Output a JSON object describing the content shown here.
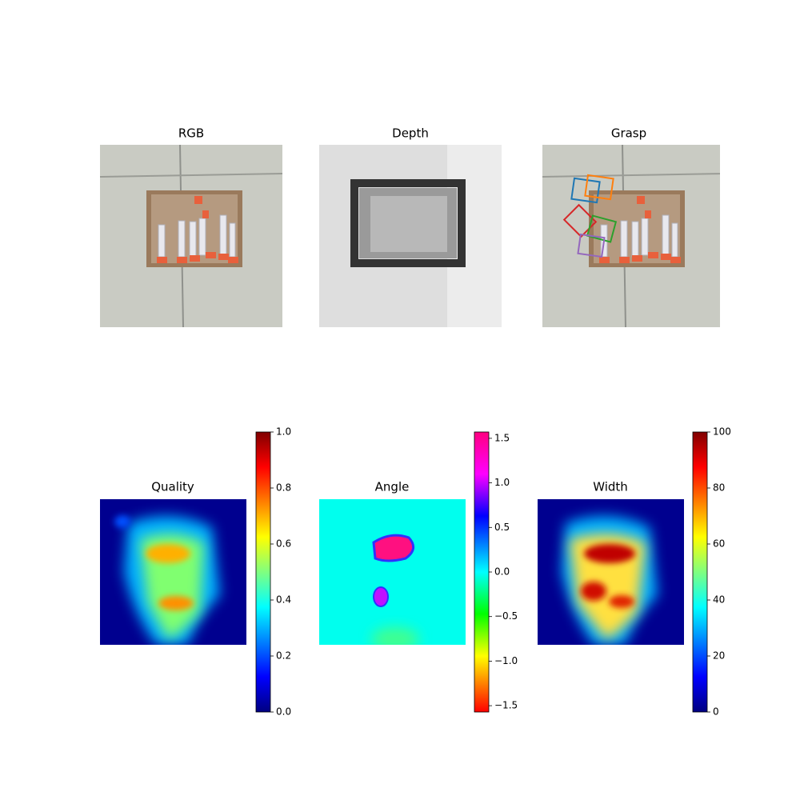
{
  "panels": [
    {
      "title": "RGB"
    },
    {
      "title": "Depth"
    },
    {
      "title": "Grasp"
    },
    {
      "title": "Quality",
      "colorbar": {
        "colormap": "jet",
        "ylim": [
          0,
          1
        ],
        "yticks": [
          {
            "value": 0,
            "label": "0.0"
          },
          {
            "value": 0.2,
            "label": "0.2"
          },
          {
            "value": 0.4,
            "label": "0.4"
          },
          {
            "value": 0.6,
            "label": "0.6"
          },
          {
            "value": 0.8,
            "label": "0.8"
          },
          {
            "value": 1,
            "label": "1.0"
          }
        ]
      }
    },
    {
      "title": "Angle",
      "colorbar": {
        "colormap": "hsv",
        "ylim": [
          -1.5708,
          1.5708
        ],
        "yticks": [
          {
            "value": -1.5,
            "label": "−1.5"
          },
          {
            "value": -1,
            "label": "−1.0"
          },
          {
            "value": -0.5,
            "label": "−0.5"
          },
          {
            "value": 0,
            "label": "0.0"
          },
          {
            "value": 0.5,
            "label": "0.5"
          },
          {
            "value": 1,
            "label": "1.0"
          },
          {
            "value": 1.5,
            "label": "1.5"
          }
        ]
      }
    },
    {
      "title": "Width",
      "colorbar": {
        "colormap": "jet",
        "ylim": [
          0,
          100
        ],
        "yticks": [
          0,
          20,
          40,
          60,
          80,
          100
        ]
      }
    }
  ]
}
